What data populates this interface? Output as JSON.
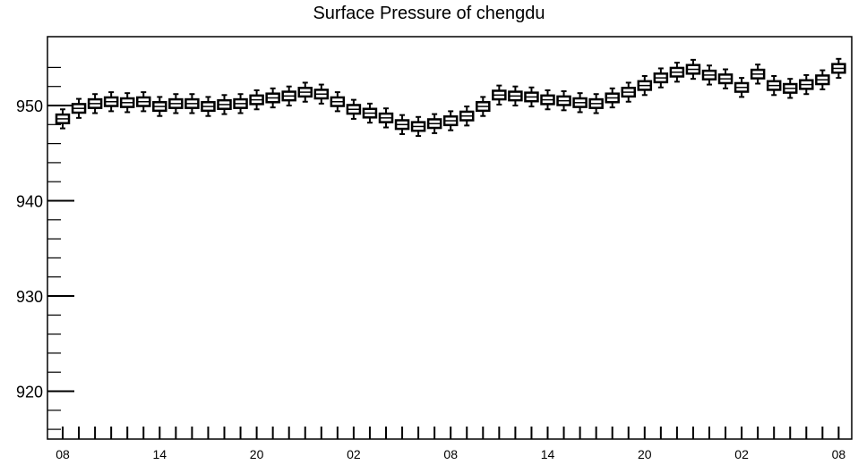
{
  "chart_data": {
    "type": "box",
    "title": "Surface Pressure of chengdu",
    "xlabel": "",
    "ylabel": "",
    "ylim": [
      915,
      955
    ],
    "y_ticks": [
      920,
      930,
      940,
      950
    ],
    "x_tick_labels": [
      "08",
      "14",
      "20",
      "02",
      "08",
      "14",
      "20",
      "02",
      "08"
    ],
    "x_hours": [
      8,
      9,
      10,
      11,
      12,
      13,
      14,
      15,
      16,
      17,
      18,
      19,
      20,
      21,
      22,
      23,
      0,
      1,
      2,
      3,
      4,
      5,
      6,
      7,
      8,
      9,
      10,
      11,
      12,
      13,
      14,
      15,
      16,
      17,
      18,
      19,
      20,
      21,
      22,
      23,
      0,
      1,
      2,
      3,
      4,
      5,
      6,
      7,
      8
    ],
    "medians": [
      948.6,
      949.7,
      950.2,
      950.4,
      950.3,
      950.4,
      949.9,
      950.2,
      950.2,
      949.9,
      950.1,
      950.2,
      950.6,
      950.8,
      951.0,
      951.4,
      951.2,
      950.4,
      949.6,
      949.2,
      948.7,
      948.0,
      947.8,
      948.1,
      948.4,
      948.9,
      949.9,
      951.1,
      951.0,
      950.9,
      950.6,
      950.5,
      950.3,
      950.2,
      950.8,
      951.4,
      952.1,
      952.9,
      953.5,
      953.8,
      953.2,
      952.8,
      951.9,
      953.3,
      952.1,
      951.8,
      952.2,
      952.7,
      953.9
    ],
    "box_half_height": 0.45,
    "whisker_half_length": 1.0,
    "grid": false,
    "colors": {
      "box_fill": "#ffffff",
      "line": "#000000",
      "background": "#ffffff"
    }
  }
}
